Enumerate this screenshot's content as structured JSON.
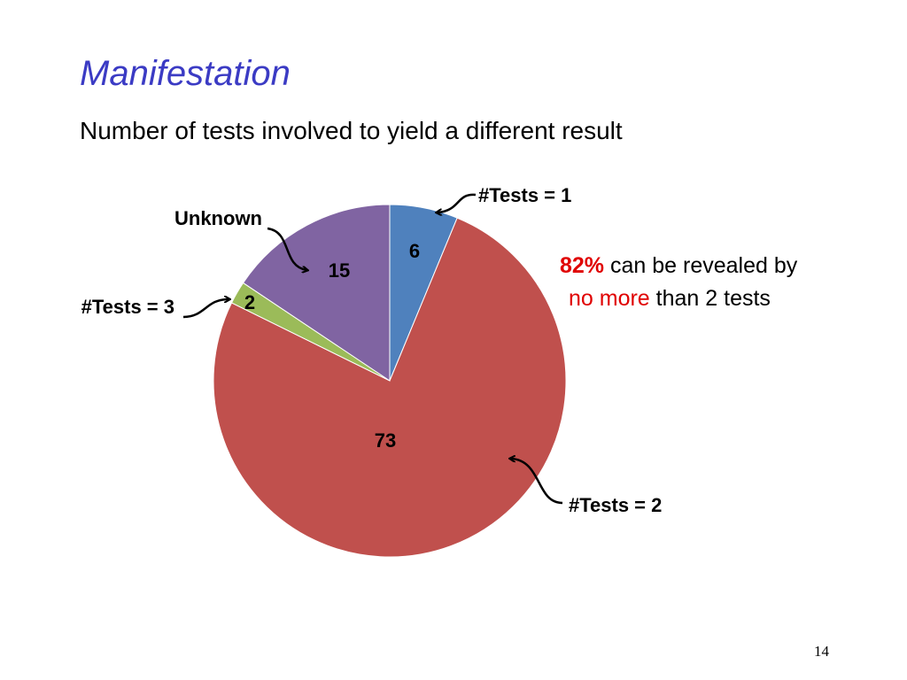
{
  "chart_data": {
    "type": "pie",
    "title": "Manifestation",
    "subtitle": "Number of tests involved to yield a different result",
    "categories": [
      "#Tests = 1",
      "#Tests = 2",
      "#Tests = 3",
      "Unknown"
    ],
    "values": [
      6,
      73,
      2,
      15
    ],
    "colors": [
      "#4f81bd",
      "#c0504d",
      "#9bbb59",
      "#8064a2"
    ],
    "annotation": {
      "highlight": "82%",
      "text1": "can be revealed by",
      "highlight2": "no more",
      "text2": "than 2 tests"
    },
    "page_number": "14"
  }
}
